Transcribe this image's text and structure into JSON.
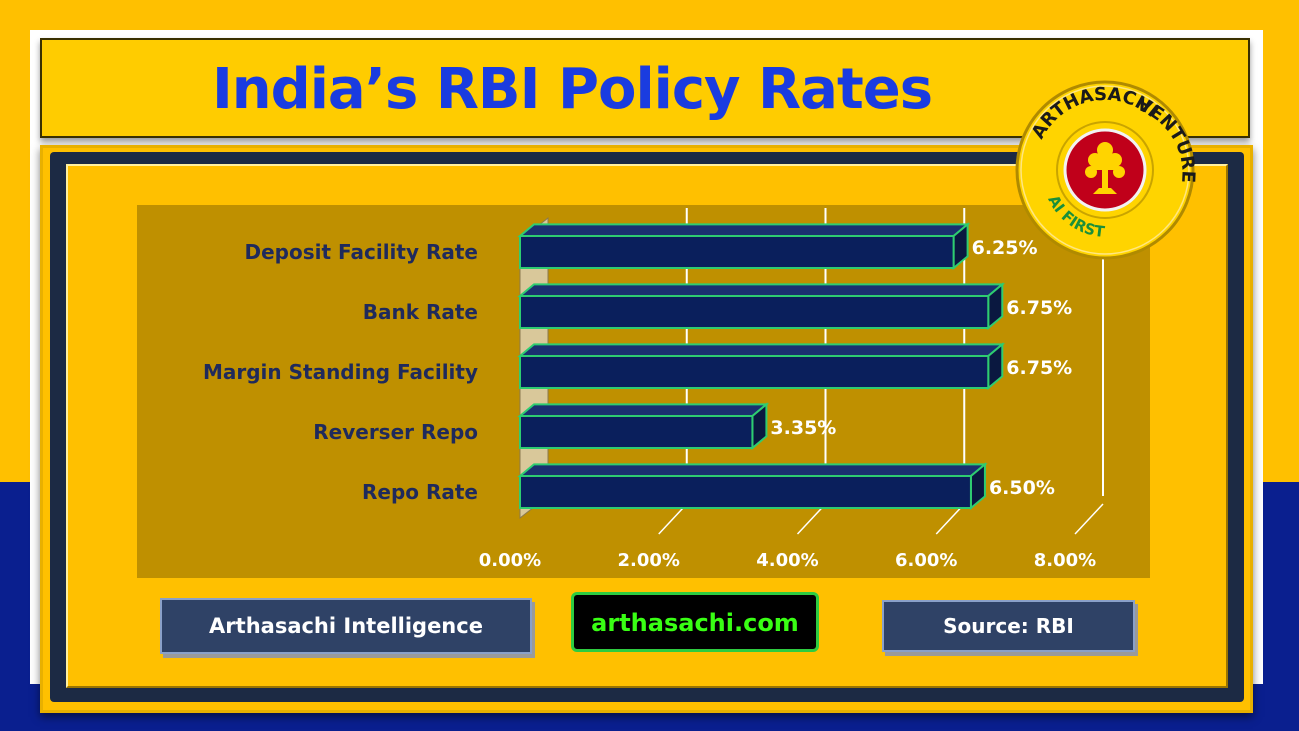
{
  "title": "India’s RBI Policy Rates",
  "chart_data": {
    "type": "bar",
    "orientation": "horizontal",
    "categories": [
      "Deposit Facility Rate",
      "Bank Rate",
      "Margin Standing Facility",
      "Reverser Repo",
      "Repo Rate"
    ],
    "values": [
      6.25,
      6.75,
      6.75,
      3.35,
      6.5
    ],
    "value_labels": [
      "6.25%",
      "6.75%",
      "6.75%",
      "3.35%",
      "6.50%"
    ],
    "xlim": [
      0,
      8
    ],
    "ticks": [
      "0.00%",
      "2.00%",
      "4.00%",
      "6.00%",
      "8.00%"
    ],
    "grid": true,
    "bar_color": "#0a1f5c",
    "bar_edge": "#2ecc71"
  },
  "buttons": {
    "left": "Arthasachi Intelligence",
    "middle": "arthasachi.com",
    "right": "Source: RBI"
  },
  "badge": {
    "top_text": "ARTHASACHI",
    "right_text": "VENTURE",
    "bottom_text": "AI FIRST",
    "icon": "tree-icon"
  },
  "colors": {
    "background": "#ffc000",
    "title": "#1a3ce0",
    "chart_bg": "#bf9000",
    "accent_green": "#39ff14"
  }
}
